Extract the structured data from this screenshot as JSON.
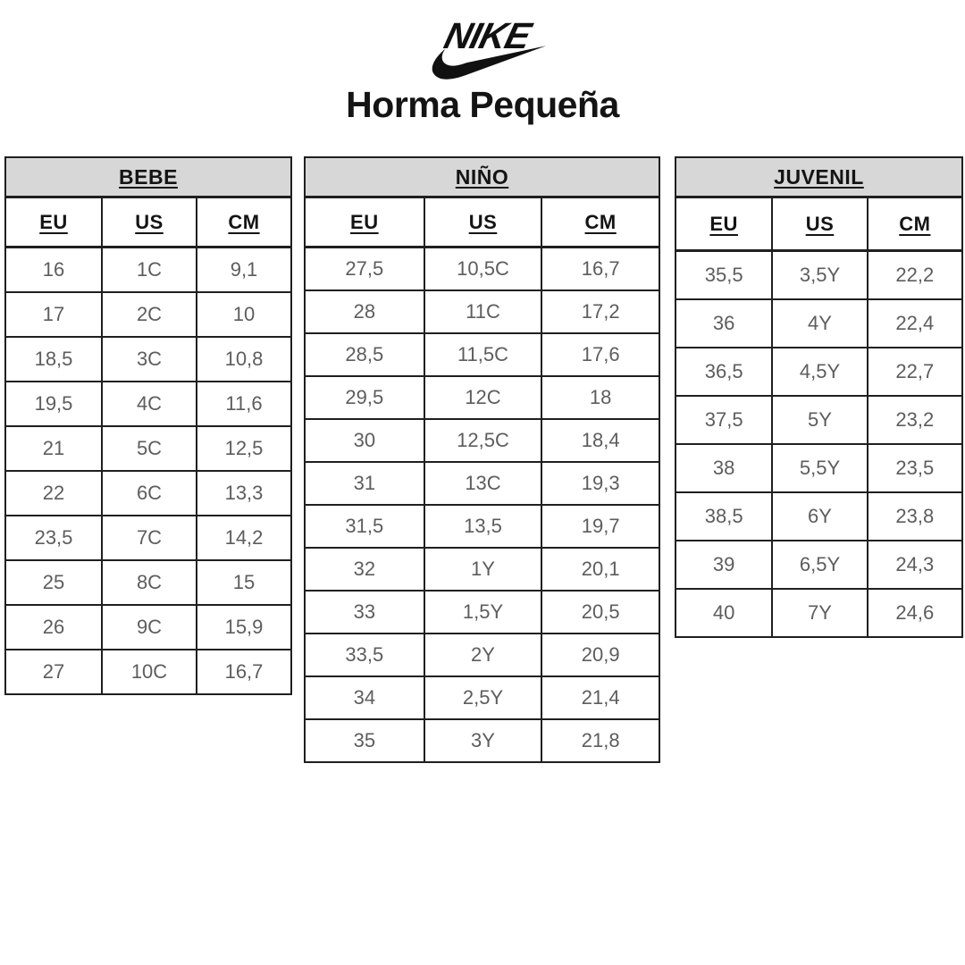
{
  "brand": {
    "logo_text": "NIKE",
    "swoosh_icon": "nike-swoosh"
  },
  "page_title": "Horma Pequeña",
  "colors": {
    "table_title_bg": "#d7d7d7",
    "table_border": "#1f1f1f",
    "heading_text": "#141414",
    "cell_text": "#5d5d5d",
    "logo_color": "#111111"
  },
  "tables": [
    {
      "title": "BEBE",
      "columns": [
        "EU",
        "US",
        "CM"
      ],
      "rows": [
        [
          "16",
          "1C",
          "9,1"
        ],
        [
          "17",
          "2C",
          "10"
        ],
        [
          "18,5",
          "3C",
          "10,8"
        ],
        [
          "19,5",
          "4C",
          "11,6"
        ],
        [
          "21",
          "5C",
          "12,5"
        ],
        [
          "22",
          "6C",
          "13,3"
        ],
        [
          "23,5",
          "7C",
          "14,2"
        ],
        [
          "25",
          "8C",
          "15"
        ],
        [
          "26",
          "9C",
          "15,9"
        ],
        [
          "27",
          "10C",
          "16,7"
        ]
      ]
    },
    {
      "title": "NIÑO",
      "columns": [
        "EU",
        "US",
        "CM"
      ],
      "rows": [
        [
          "27,5",
          "10,5C",
          "16,7"
        ],
        [
          "28",
          "11C",
          "17,2"
        ],
        [
          "28,5",
          "11,5C",
          "17,6"
        ],
        [
          "29,5",
          "12C",
          "18"
        ],
        [
          "30",
          "12,5C",
          "18,4"
        ],
        [
          "31",
          "13C",
          "19,3"
        ],
        [
          "31,5",
          "13,5",
          "19,7"
        ],
        [
          "32",
          "1Y",
          "20,1"
        ],
        [
          "33",
          "1,5Y",
          "20,5"
        ],
        [
          "33,5",
          "2Y",
          "20,9"
        ],
        [
          "34",
          "2,5Y",
          "21,4"
        ],
        [
          "35",
          "3Y",
          "21,8"
        ]
      ]
    },
    {
      "title": "JUVENIL",
      "columns": [
        "EU",
        "US",
        "CM"
      ],
      "rows": [
        [
          "35,5",
          "3,5Y",
          "22,2"
        ],
        [
          "36",
          "4Y",
          "22,4"
        ],
        [
          "36,5",
          "4,5Y",
          "22,7"
        ],
        [
          "37,5",
          "5Y",
          "23,2"
        ],
        [
          "38",
          "5,5Y",
          "23,5"
        ],
        [
          "38,5",
          "6Y",
          "23,8"
        ],
        [
          "39",
          "6,5Y",
          "24,3"
        ],
        [
          "40",
          "7Y",
          "24,6"
        ]
      ]
    }
  ]
}
